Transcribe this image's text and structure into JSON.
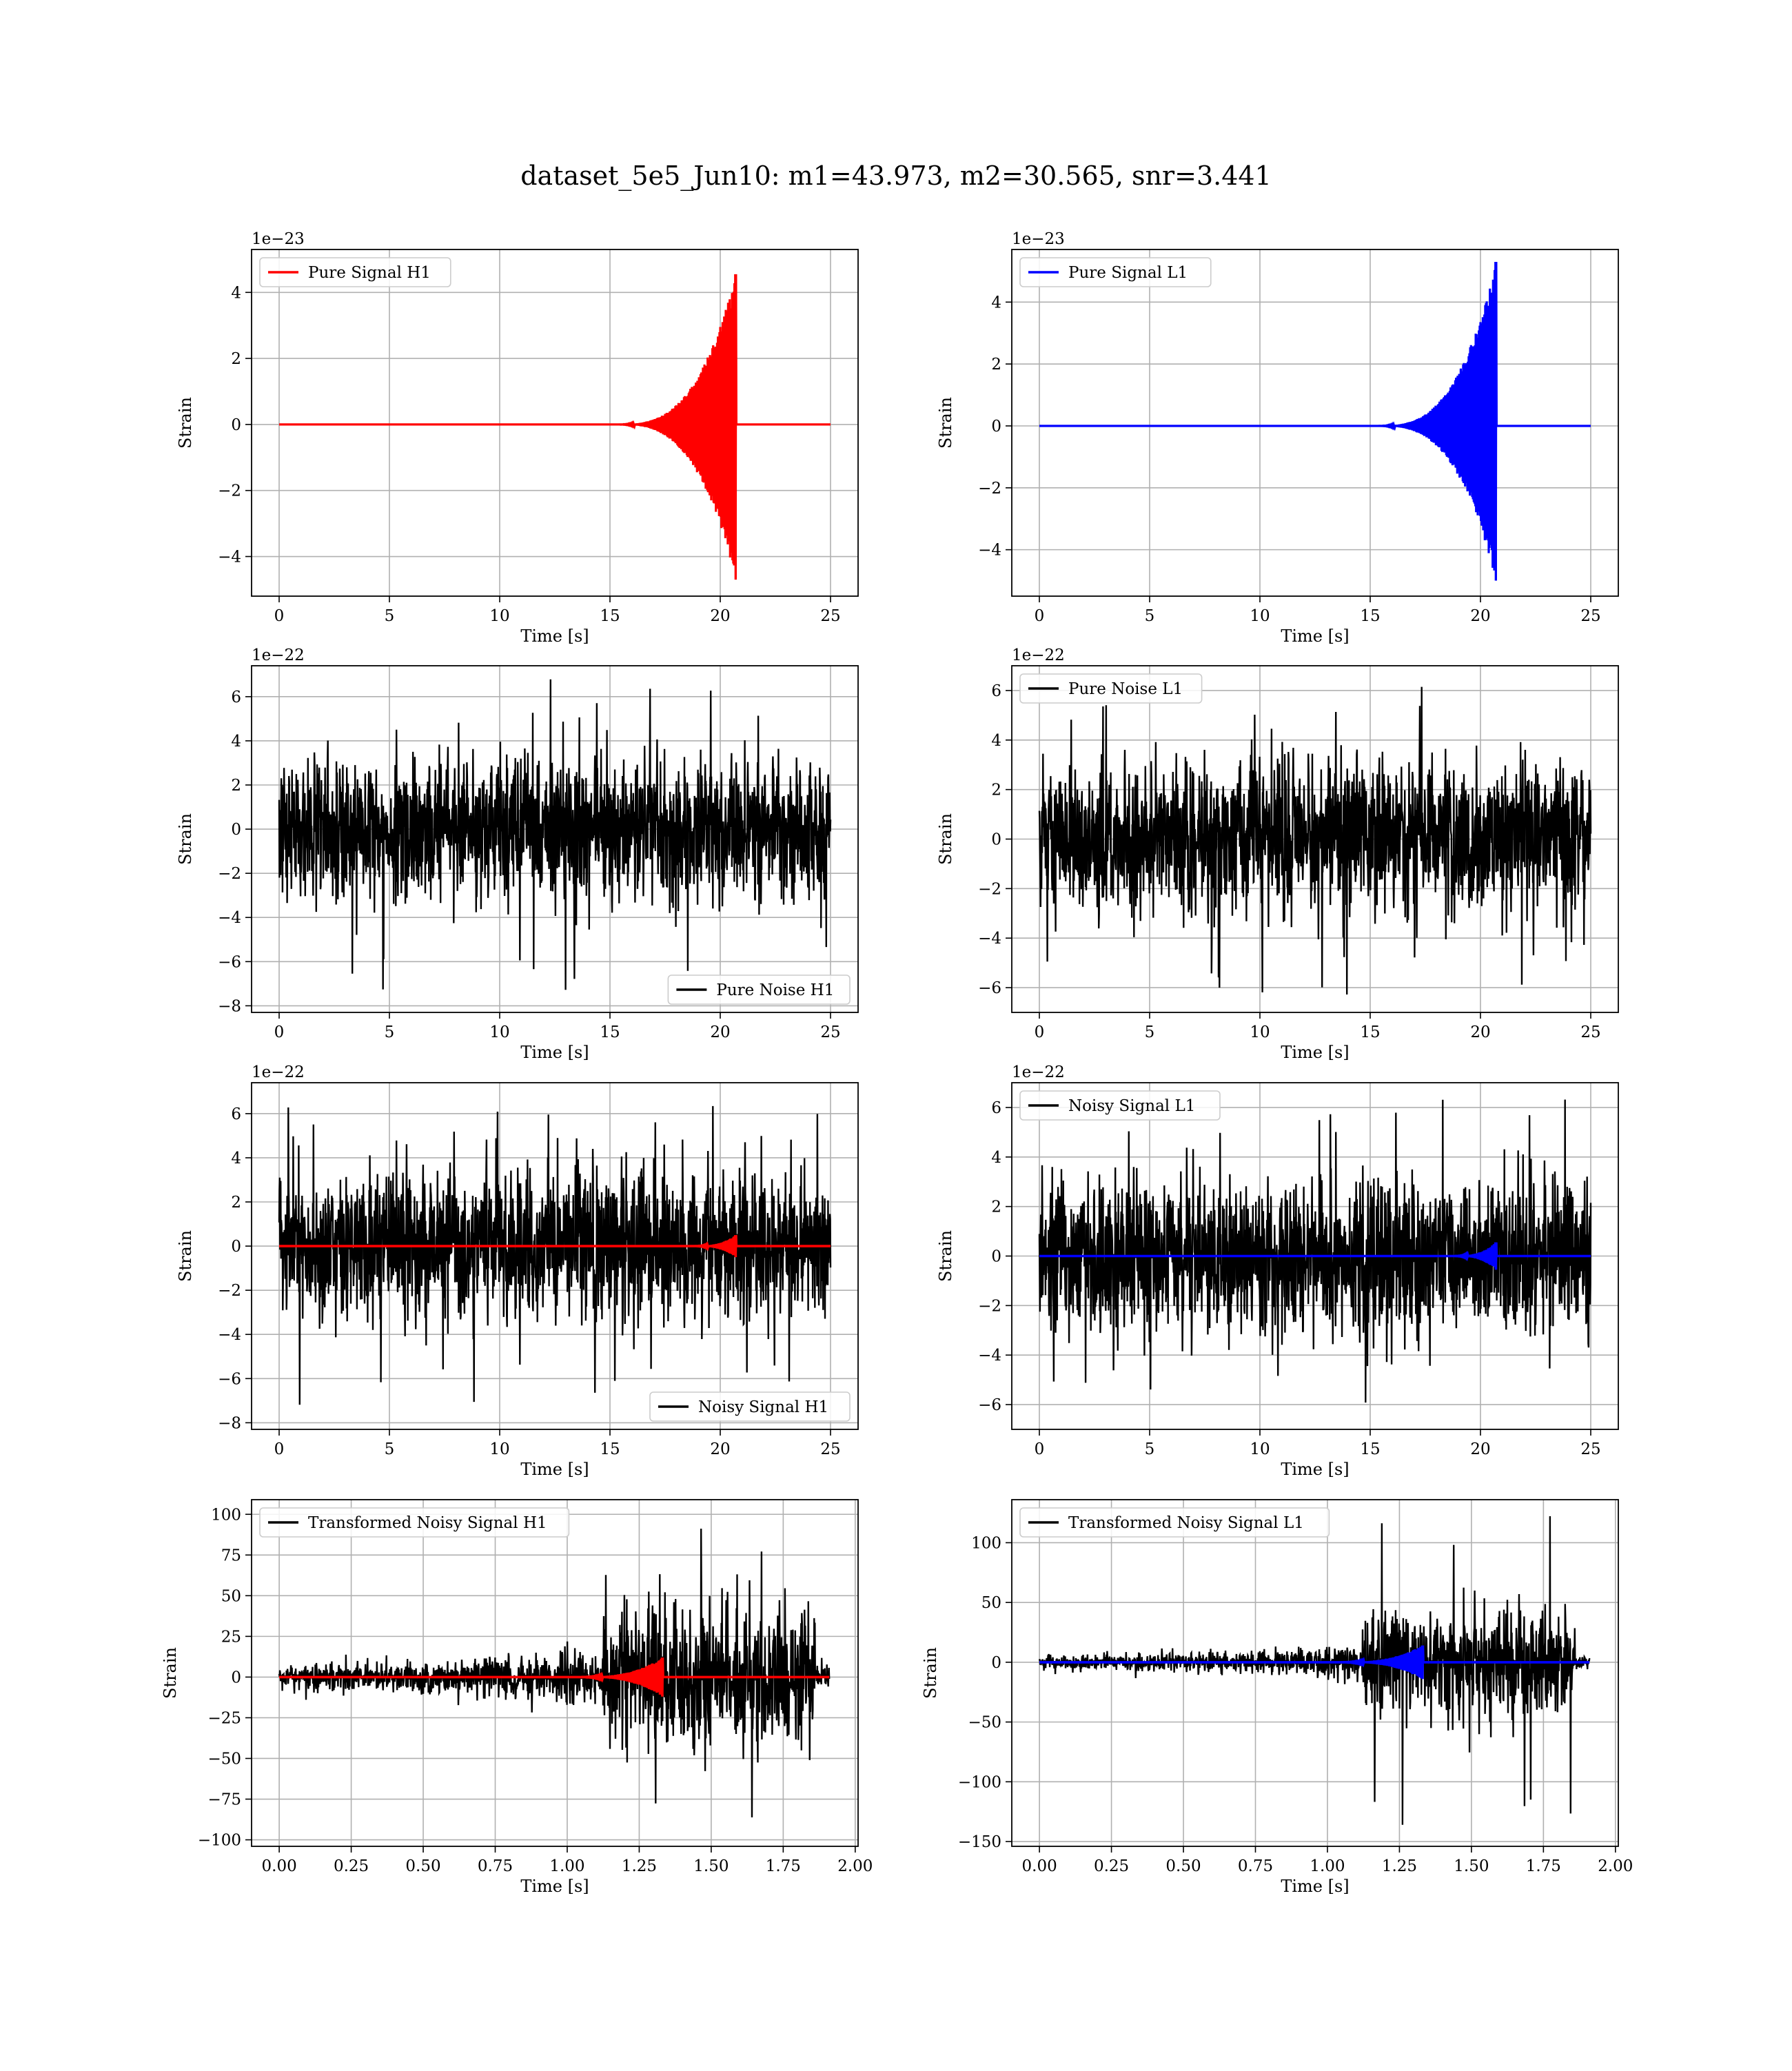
{
  "figure": {
    "title": "dataset_5e5_Jun10: m1=43.973, m2=30.565, snr=3.441"
  },
  "chart_data": [
    {
      "id": "pure-signal-h1",
      "type": "line",
      "kind": "chirp",
      "xlabel": "Time [s]",
      "ylabel": "Strain",
      "offset_text": "1e−23",
      "xlim": [
        -1.25,
        26.25
      ],
      "ylim": [
        -5.2,
        5.3
      ],
      "xticks": [
        "0",
        "5",
        "10",
        "15",
        "20",
        "25"
      ],
      "yticks": [
        "−4",
        "−2",
        "0",
        "2",
        "4"
      ],
      "legend_position": "top-left",
      "series": [
        {
          "name": "Pure Signal H1",
          "color": "#ff0000",
          "x_start": 0,
          "x_end": 25,
          "merger_time": 20.7,
          "onset_time": 15.0,
          "peak_max": 4.55,
          "peak_min": -4.7
        }
      ]
    },
    {
      "id": "pure-signal-l1",
      "type": "line",
      "kind": "chirp",
      "xlabel": "Time [s]",
      "ylabel": "Strain",
      "offset_text": "1e−23",
      "xlim": [
        -1.25,
        26.25
      ],
      "ylim": [
        -5.5,
        5.7
      ],
      "xticks": [
        "0",
        "5",
        "10",
        "15",
        "20",
        "25"
      ],
      "yticks": [
        "−4",
        "−2",
        "0",
        "2",
        "4"
      ],
      "legend_position": "top-left",
      "series": [
        {
          "name": "Pure Signal L1",
          "color": "#0000ff",
          "x_start": 0,
          "x_end": 25,
          "merger_time": 20.7,
          "onset_time": 15.0,
          "peak_max": 5.3,
          "peak_min": -5.0
        }
      ]
    },
    {
      "id": "pure-noise-h1",
      "type": "line",
      "kind": "noise",
      "xlabel": "Time [s]",
      "ylabel": "Strain",
      "offset_text": "1e−22",
      "xlim": [
        -1.25,
        26.25
      ],
      "ylim": [
        -8.3,
        7.4
      ],
      "xticks": [
        "0",
        "5",
        "10",
        "15",
        "20",
        "25"
      ],
      "yticks": [
        "−8",
        "−6",
        "−4",
        "−2",
        "0",
        "2",
        "4",
        "6"
      ],
      "legend_position": "bottom-right",
      "series": [
        {
          "name": "Pure Noise H1",
          "color": "#000000",
          "x_start": 0,
          "x_end": 25,
          "max": 6.8,
          "min": -7.6,
          "typical": 3.8
        }
      ]
    },
    {
      "id": "pure-noise-l1",
      "type": "line",
      "kind": "noise",
      "xlabel": "Time [s]",
      "ylabel": "Strain",
      "offset_text": "1e−22",
      "xlim": [
        -1.25,
        26.25
      ],
      "ylim": [
        -7.0,
        7.0
      ],
      "xticks": [
        "0",
        "5",
        "10",
        "15",
        "20",
        "25"
      ],
      "yticks": [
        "−6",
        "−4",
        "−2",
        "0",
        "2",
        "4",
        "6"
      ],
      "legend_position": "top-left",
      "series": [
        {
          "name": "Pure Noise L1",
          "color": "#000000",
          "x_start": 0,
          "x_end": 25,
          "max": 6.5,
          "min": -6.3,
          "typical": 3.6
        }
      ]
    },
    {
      "id": "noisy-signal-h1",
      "type": "line",
      "kind": "noisy",
      "xlabel": "Time [s]",
      "ylabel": "Strain",
      "offset_text": "1e−22",
      "xlim": [
        -1.25,
        26.25
      ],
      "ylim": [
        -8.3,
        7.4
      ],
      "xticks": [
        "0",
        "5",
        "10",
        "15",
        "20",
        "25"
      ],
      "yticks": [
        "−8",
        "−6",
        "−4",
        "−2",
        "0",
        "2",
        "4",
        "6"
      ],
      "legend_position": "bottom-right",
      "series": [
        {
          "name": "Noisy Signal H1",
          "color": "#000000",
          "x_start": 0,
          "x_end": 25,
          "max": 6.8,
          "min": -7.6,
          "typical": 3.8
        },
        {
          "name": "",
          "color": "#ff0000",
          "x_start": 0,
          "x_end": 25,
          "merger_time": 20.7,
          "onset_time": 18.5,
          "peak_max": 0.5,
          "peak_min": -0.5
        }
      ]
    },
    {
      "id": "noisy-signal-l1",
      "type": "line",
      "kind": "noisy",
      "xlabel": "Time [s]",
      "ylabel": "Strain",
      "offset_text": "1e−22",
      "xlim": [
        -1.25,
        26.25
      ],
      "ylim": [
        -7.0,
        7.0
      ],
      "xticks": [
        "0",
        "5",
        "10",
        "15",
        "20",
        "25"
      ],
      "yticks": [
        "−6",
        "−4",
        "−2",
        "0",
        "2",
        "4",
        "6"
      ],
      "legend_position": "top-left",
      "series": [
        {
          "name": "Noisy Signal L1",
          "color": "#000000",
          "x_start": 0,
          "x_end": 25,
          "max": 6.5,
          "min": -6.3,
          "typical": 3.6
        },
        {
          "name": "",
          "color": "#0000ff",
          "x_start": 0,
          "x_end": 25,
          "merger_time": 20.7,
          "onset_time": 18.5,
          "peak_max": 0.55,
          "peak_min": -0.55
        }
      ]
    },
    {
      "id": "transformed-h1",
      "type": "line",
      "kind": "transformed",
      "xlabel": "Time [s]",
      "ylabel": "Strain",
      "offset_text": "",
      "xlim": [
        -0.096,
        2.01
      ],
      "ylim": [
        -104,
        109
      ],
      "xticks": [
        "0.00",
        "0.25",
        "0.50",
        "0.75",
        "1.00",
        "1.25",
        "1.50",
        "1.75",
        "2.00"
      ],
      "yticks": [
        "−100",
        "−75",
        "−50",
        "−25",
        "0",
        "25",
        "50",
        "75",
        "100"
      ],
      "legend_position": "top-left",
      "series": [
        {
          "name": "Transformed Noisy Signal H1",
          "color": "#000000",
          "x_start": 0,
          "x_end": 1.91,
          "jump_time": 1.12,
          "end_loud": 1.86,
          "max": 101,
          "min": -93,
          "early_amp": 10,
          "late_amp": 58
        },
        {
          "name": "",
          "color": "#ff0000",
          "x_start": 0,
          "x_end": 1.91,
          "merger_time": 1.33,
          "onset_time": 1.0,
          "peak_max": 12,
          "peak_min": -12
        }
      ]
    },
    {
      "id": "transformed-l1",
      "type": "line",
      "kind": "transformed",
      "xlabel": "Time [s]",
      "ylabel": "Strain",
      "offset_text": "",
      "xlim": [
        -0.096,
        2.01
      ],
      "ylim": [
        -154,
        136
      ],
      "xticks": [
        "0.00",
        "0.25",
        "0.50",
        "0.75",
        "1.00",
        "1.25",
        "1.50",
        "1.75",
        "2.00"
      ],
      "yticks": [
        "−150",
        "−100",
        "−50",
        "0",
        "50",
        "100"
      ],
      "legend_position": "top-left",
      "series": [
        {
          "name": "Transformed Noisy Signal L1",
          "color": "#000000",
          "x_start": 0,
          "x_end": 1.91,
          "jump_time": 1.12,
          "end_loud": 1.86,
          "max": 125,
          "min": -140,
          "early_amp": 8,
          "late_amp": 62
        },
        {
          "name": "",
          "color": "#0000ff",
          "x_start": 0,
          "x_end": 1.91,
          "merger_time": 1.33,
          "onset_time": 1.0,
          "peak_max": 14,
          "peak_min": -14
        }
      ]
    }
  ]
}
